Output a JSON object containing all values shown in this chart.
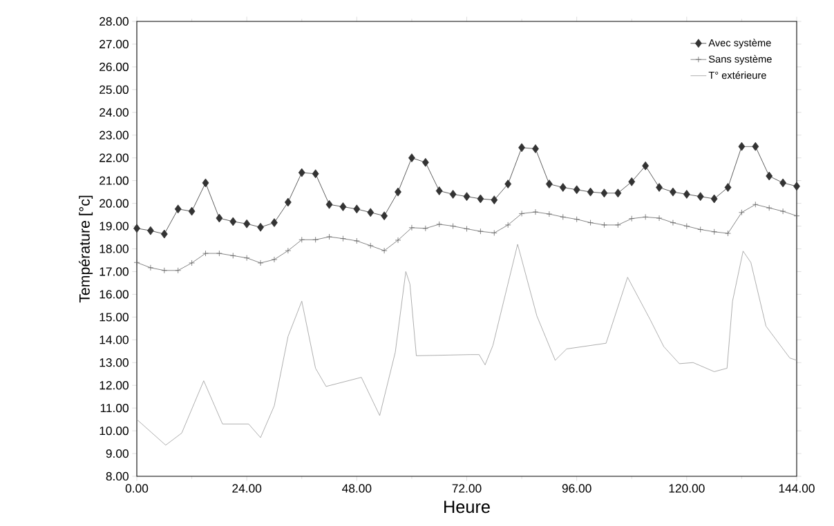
{
  "chart_data": {
    "type": "line",
    "xlabel": "Heure",
    "ylabel": "Température [°c]",
    "xlim": [
      0,
      144
    ],
    "ylim": [
      8,
      28
    ],
    "xticks": [
      {
        "value": 0,
        "label": "0.00"
      },
      {
        "value": 24,
        "label": "24.00"
      },
      {
        "value": 48,
        "label": "48.00"
      },
      {
        "value": 72,
        "label": "72.00"
      },
      {
        "value": 96,
        "label": "96.00"
      },
      {
        "value": 120,
        "label": "120.00"
      },
      {
        "value": 144,
        "label": "144.00"
      }
    ],
    "yticks": [
      {
        "value": 8,
        "label": "8.00"
      },
      {
        "value": 9,
        "label": "9.00"
      },
      {
        "value": 10,
        "label": "10.00"
      },
      {
        "value": 11,
        "label": "11.00"
      },
      {
        "value": 12,
        "label": "12.00"
      },
      {
        "value": 13,
        "label": "13.00"
      },
      {
        "value": 14,
        "label": "14.00"
      },
      {
        "value": 15,
        "label": "15.00"
      },
      {
        "value": 16,
        "label": "16.00"
      },
      {
        "value": 17,
        "label": "17.00"
      },
      {
        "value": 18,
        "label": "18.00"
      },
      {
        "value": 19,
        "label": "19.00"
      },
      {
        "value": 20,
        "label": "20.00"
      },
      {
        "value": 21,
        "label": "21.00"
      },
      {
        "value": 22,
        "label": "22.00"
      },
      {
        "value": 23,
        "label": "23.00"
      },
      {
        "value": 24,
        "label": "24.00"
      },
      {
        "value": 25,
        "label": "25.00"
      },
      {
        "value": 26,
        "label": "26.00"
      },
      {
        "value": 27,
        "label": "27.00"
      },
      {
        "value": 28,
        "label": "28.00"
      }
    ],
    "legend": "top right",
    "grid": false,
    "x": [
      0,
      3,
      6,
      9,
      12,
      15,
      18,
      21,
      24,
      27,
      30,
      33,
      36,
      39,
      42,
      45,
      48,
      51,
      54,
      57,
      60,
      63,
      66,
      69,
      72,
      75,
      78,
      81,
      84,
      87,
      90,
      93,
      96,
      99,
      102,
      105,
      108,
      111,
      114,
      117,
      120,
      123,
      126,
      129,
      132,
      135,
      138,
      141,
      144
    ],
    "series": [
      {
        "name": "Avec système",
        "color": "#333333",
        "marker": "diamond",
        "values": [
          18.9,
          18.8,
          18.65,
          19.75,
          19.65,
          20.9,
          19.35,
          19.2,
          19.1,
          18.95,
          19.15,
          20.05,
          21.35,
          21.3,
          19.95,
          19.85,
          19.75,
          19.6,
          19.45,
          20.5,
          22.0,
          21.8,
          20.55,
          20.4,
          20.3,
          20.2,
          20.15,
          20.85,
          22.45,
          22.4,
          20.85,
          20.7,
          20.6,
          20.5,
          20.45,
          20.45,
          20.95,
          21.65,
          20.7,
          20.5,
          20.4,
          20.3,
          20.2,
          20.7,
          22.5,
          22.5,
          21.2,
          20.9,
          20.75
        ]
      },
      {
        "name": "Sans système",
        "color": "#666666",
        "marker": "cross",
        "values": [
          17.4,
          17.17,
          17.05,
          17.05,
          17.38,
          17.8,
          17.8,
          17.7,
          17.6,
          17.38,
          17.53,
          17.92,
          18.4,
          18.4,
          18.53,
          18.45,
          18.35,
          18.14,
          17.92,
          18.38,
          18.93,
          18.9,
          19.08,
          19.0,
          18.88,
          18.77,
          18.7,
          19.05,
          19.55,
          19.62,
          19.53,
          19.4,
          19.3,
          19.15,
          19.05,
          19.05,
          19.33,
          19.4,
          19.35,
          19.15,
          19.0,
          18.85,
          18.75,
          18.68,
          19.6,
          19.95,
          19.8,
          19.65,
          19.45
        ]
      },
      {
        "name": "T° extérieure",
        "color": "#999999",
        "marker": "none",
        "x": [
          0,
          6.3,
          9.8,
          14.6,
          18.7,
          24.4,
          27,
          30,
          33,
          36,
          39,
          41.3,
          49,
          53,
          56.4,
          58.7,
          59.6,
          61,
          72.7,
          74.7,
          76,
          77.7,
          83.1,
          87.3,
          91.3,
          93.8,
          102.4,
          107.1,
          112,
          115,
          118.4,
          121.4,
          126,
          128.8,
          130,
          132.3,
          134,
          137.3,
          142.5,
          144
        ],
        "values": [
          10.5,
          9.37,
          9.9,
          12.2,
          10.3,
          10.3,
          9.7,
          11.1,
          14.15,
          15.7,
          12.75,
          11.95,
          12.35,
          10.67,
          13.45,
          17.0,
          16.45,
          13.3,
          13.35,
          13.35,
          12.9,
          13.75,
          18.2,
          15.05,
          13.1,
          13.6,
          13.85,
          16.75,
          14.9,
          13.7,
          12.95,
          13.0,
          12.6,
          12.75,
          15.7,
          17.9,
          17.4,
          14.6,
          13.2,
          13.1
        ]
      }
    ]
  }
}
